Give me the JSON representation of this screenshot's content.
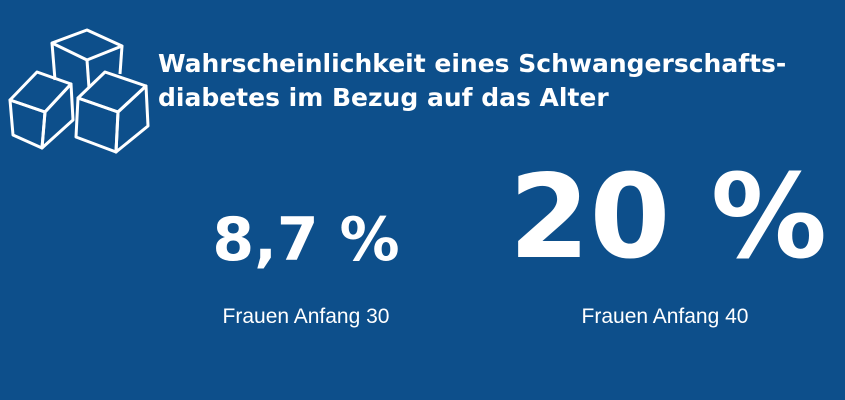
{
  "header": {
    "title_lines": [
      "Wahrscheinlichkeit eines Schwangerschafts-",
      "diabetes im Bezug auf das Alter"
    ]
  },
  "stats": [
    {
      "value": "8,7 %",
      "label": "Frauen Anfang 30"
    },
    {
      "value": "20 %",
      "label": "Frauen Anfang 40"
    }
  ]
}
